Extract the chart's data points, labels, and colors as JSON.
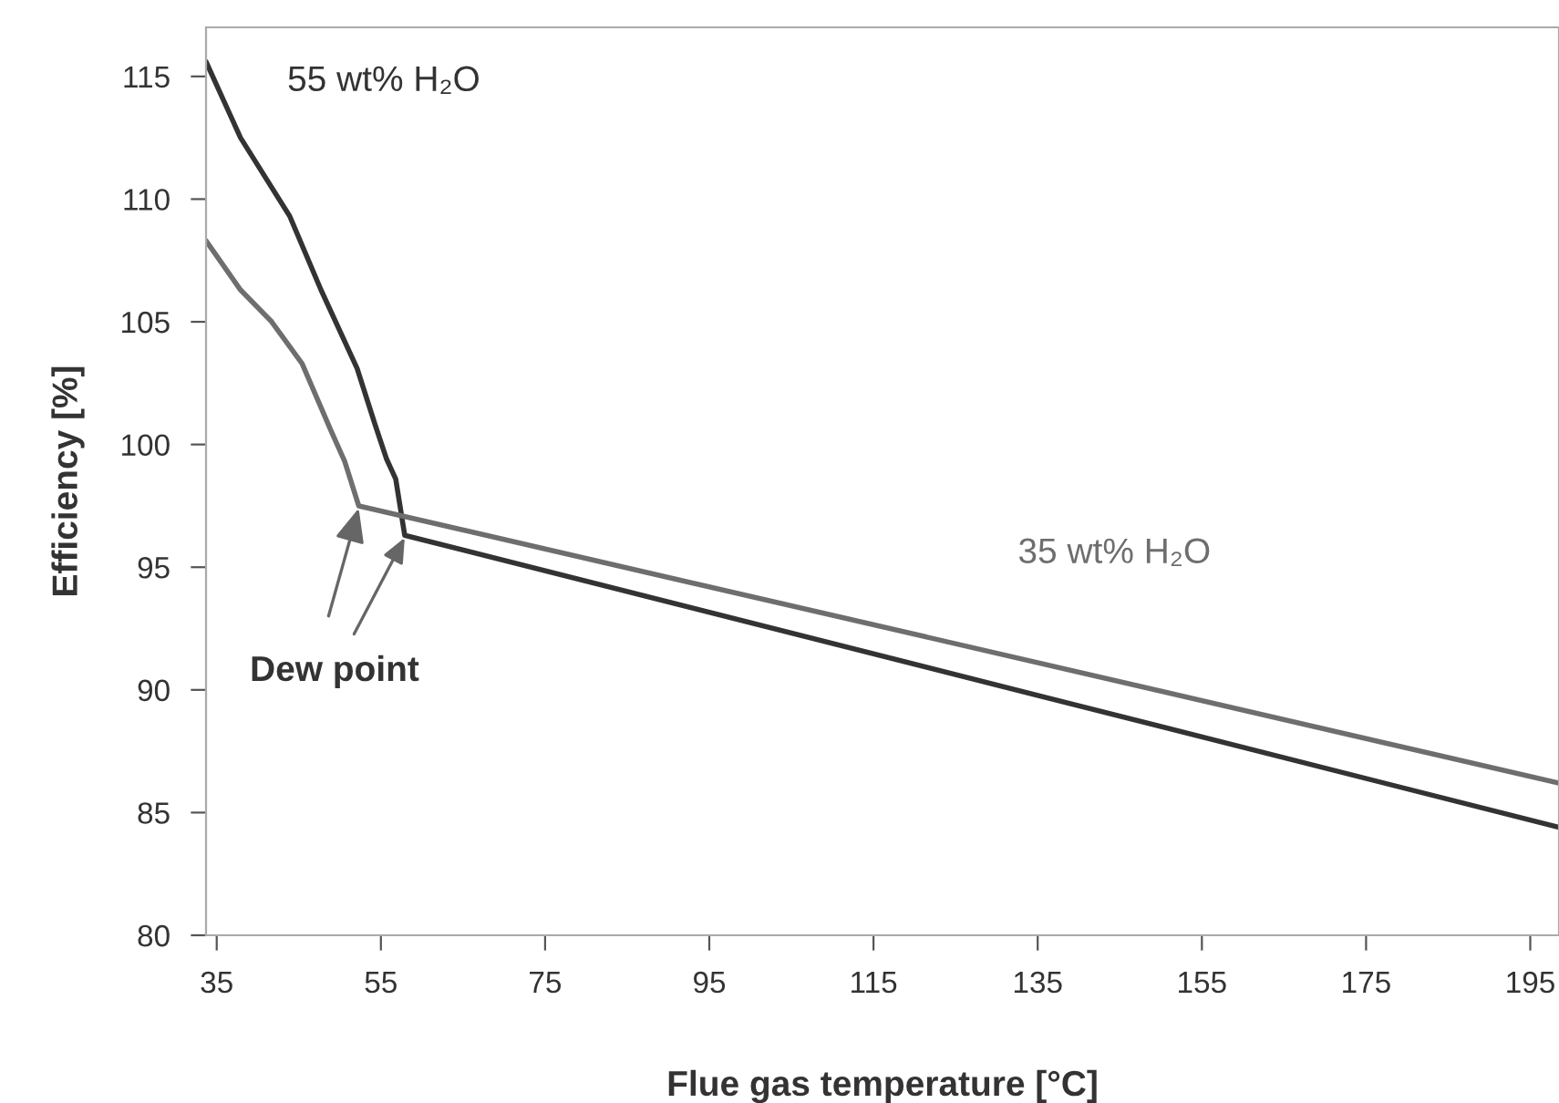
{
  "chart_data": {
    "type": "line",
    "xlabel": "Flue gas temperature [°C]",
    "ylabel": "Efficiency [%]",
    "series": [
      {
        "name": "55 wt% H₂O",
        "color": "#333333",
        "x": [
          33.7,
          37.9,
          43.9,
          47.7,
          52.1,
          54.3,
          55.7,
          56.8,
          57.9,
          198.5
        ],
        "values": [
          115.6,
          112.5,
          109.3,
          106.3,
          103.1,
          100.8,
          99.4,
          98.6,
          96.3,
          84.4
        ]
      },
      {
        "name": "35 wt% H₂O",
        "color": "#6e6e6e",
        "x": [
          33.7,
          37.9,
          41.7,
          45.4,
          49,
          50.6,
          52.3,
          198.5
        ],
        "values": [
          108.3,
          106.3,
          105.0,
          103.3,
          100.5,
          99.3,
          97.5,
          86.2
        ]
      }
    ],
    "annotations": [
      {
        "text": "Dew point",
        "x": 52.3,
        "y": 97.5
      }
    ],
    "xlim": [
      33.7,
      198.5
    ],
    "ylim": [
      80,
      117
    ],
    "xticks": [
      35,
      55,
      75,
      95,
      115,
      135,
      155,
      175,
      195
    ],
    "yticks": [
      80,
      85,
      90,
      95,
      100,
      105,
      110,
      115
    ],
    "grid": false,
    "legend": false,
    "marker": "none",
    "line_style": "solid"
  }
}
